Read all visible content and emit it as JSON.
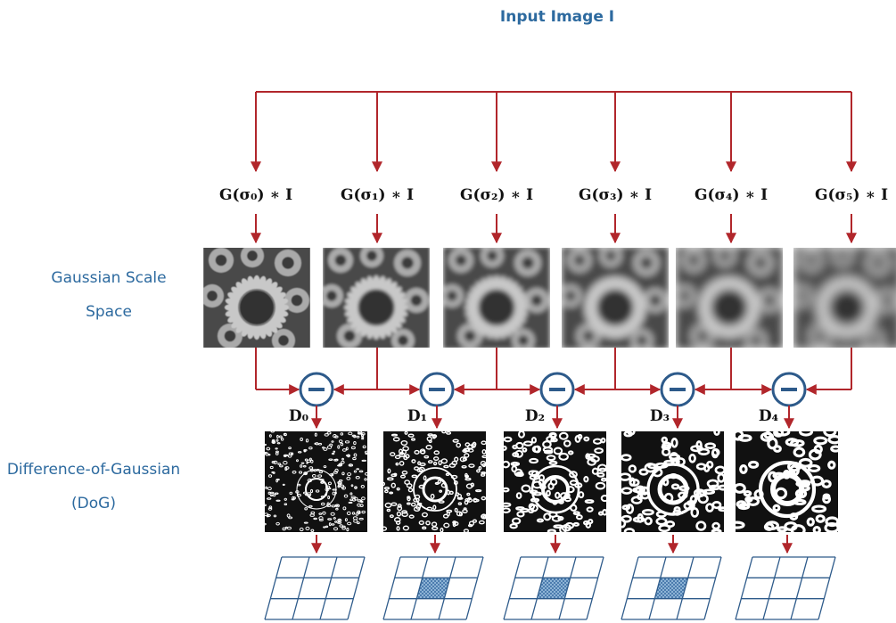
{
  "input_label": "Input Image I",
  "gaussian_side_label": [
    "Gaussian  Scale",
    "Space"
  ],
  "dog_side_label": [
    "Difference-of-Gaussian",
    "(DoG)"
  ],
  "gaussians": [
    "G(σ₀) ∗ I",
    "G(σ₁) ∗ I",
    "G(σ₂) ∗ I",
    "G(σ₃) ∗ I",
    "G(σ₄) ∗ I",
    "G(σ₅) ∗ I"
  ],
  "dogs": [
    "D₀",
    "D₁",
    "D₂",
    "D₃",
    "D₄"
  ]
}
